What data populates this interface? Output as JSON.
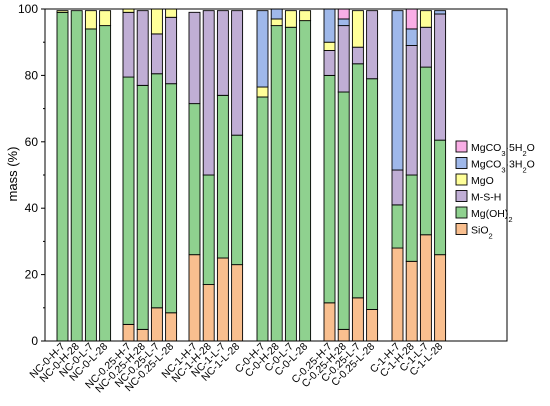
{
  "chart_data": {
    "type": "bar",
    "stacked": true,
    "ylabel": "mass (%)",
    "xlabel": "",
    "ylim": [
      0,
      100
    ],
    "yticks": [
      "0",
      "20",
      "40",
      "60",
      "80",
      "100"
    ],
    "grid": false,
    "legend_position": "right",
    "categories": [
      "NC-0-H-7",
      "NC-0-H-28",
      "NC-0-L-7",
      "NC-0-L-28",
      "NC-0.25-H-7",
      "NC-0.25-H-28",
      "NC-0.25-L-7",
      "NC-0.25-L-28",
      "NC-1-H-7",
      "NC-1-H-28",
      "NC-1-L-7",
      "NC-1-L-28",
      "C-0-H-7",
      "C-0-H-28",
      "C-0-L-7",
      "C-0-L-28",
      "C-0.25-H-7",
      "C-0.25-H-28",
      "C-0.25-L-7",
      "C-0.25-L-28",
      "C-1-H-7",
      "C-1-H-28",
      "C-1-L-7",
      "C-1-L-28"
    ],
    "series": [
      {
        "name": "SiO2",
        "label_main": "SiO",
        "label_sub": "2",
        "label_tail": "",
        "color": "#f9bf8f",
        "values": [
          0,
          0,
          0,
          0,
          5,
          3.5,
          10,
          8.5,
          26,
          17,
          25,
          23,
          0,
          0,
          0,
          0,
          11.5,
          3.5,
          13,
          9.5,
          28,
          24,
          32,
          26
        ]
      },
      {
        "name": "Mg(OH)2",
        "label_main": "Mg(OH)",
        "label_sub": "2",
        "label_tail": "",
        "color": "#8fd18f",
        "values": [
          99,
          99.5,
          94,
          95,
          74.5,
          73.5,
          70.5,
          69,
          45.5,
          33,
          49,
          39,
          73.5,
          95,
          94.5,
          96.5,
          68.5,
          71.5,
          70.5,
          69.5,
          13,
          26,
          50.5,
          34.5
        ]
      },
      {
        "name": "M-S-H",
        "label_main": "M-S-H",
        "label_sub": "",
        "label_tail": "",
        "color": "#c0aed5",
        "values": [
          0,
          0,
          0,
          0,
          19.5,
          22.5,
          12,
          20,
          27.5,
          49.5,
          25.5,
          37.5,
          0,
          0,
          0,
          0,
          7.5,
          20,
          5,
          20.5,
          10.5,
          39,
          12,
          38
        ]
      },
      {
        "name": "MgO",
        "label_main": "MgO",
        "label_sub": "",
        "label_tail": "",
        "color": "#ffff99",
        "values": [
          0.5,
          0,
          5.5,
          4.5,
          1,
          0,
          7.5,
          2.5,
          0,
          0,
          0,
          0,
          3,
          2,
          5,
          3,
          2.5,
          0,
          11,
          0,
          0,
          0,
          5,
          0
        ]
      },
      {
        "name": "MgCO3·3H2O",
        "label_main": "MgCO",
        "label_sub": "3",
        "label_tail": "·3H",
        "label_sub2": "2",
        "label_end": "O",
        "color": "#9fb8ea",
        "values": [
          0,
          0,
          0,
          0,
          0,
          0,
          0,
          0,
          0,
          0,
          0,
          0,
          23,
          3,
          0,
          0,
          10,
          2,
          0,
          0,
          48,
          5,
          0,
          1
        ]
      },
      {
        "name": "MgCO3·5H2O",
        "label_main": "MgCO",
        "label_sub": "3",
        "label_tail": "·5H",
        "label_sub2": "2",
        "label_end": "O",
        "color": "#f9aee6",
        "values": [
          0,
          0,
          0,
          0,
          0,
          0,
          0,
          0,
          0,
          0,
          0,
          0,
          0,
          0,
          0,
          0,
          0,
          3,
          0,
          0,
          0,
          6,
          0,
          0
        ]
      }
    ],
    "legend_order": [
      "MgCO3·5H2O",
      "MgCO3·3H2O",
      "MgO",
      "M-S-H",
      "Mg(OH)2",
      "SiO2"
    ]
  }
}
